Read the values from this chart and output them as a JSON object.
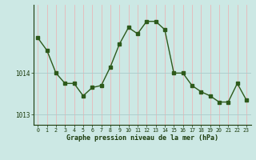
{
  "x": [
    0,
    1,
    2,
    3,
    4,
    5,
    6,
    7,
    8,
    9,
    10,
    11,
    12,
    13,
    14,
    15,
    16,
    17,
    18,
    19,
    20,
    21,
    22,
    23
  ],
  "y": [
    1014.85,
    1014.55,
    1014.0,
    1013.75,
    1013.75,
    1013.45,
    1013.65,
    1013.7,
    1014.15,
    1014.7,
    1015.1,
    1014.95,
    1015.25,
    1015.25,
    1015.05,
    1014.0,
    1014.0,
    1013.7,
    1013.55,
    1013.45,
    1013.3,
    1013.3,
    1013.75,
    1013.35
  ],
  "ylim": [
    1012.75,
    1015.65
  ],
  "yticks": [
    1013,
    1014
  ],
  "xticks": [
    0,
    1,
    2,
    3,
    4,
    5,
    6,
    7,
    8,
    9,
    10,
    11,
    12,
    13,
    14,
    15,
    16,
    17,
    18,
    19,
    20,
    21,
    22,
    23
  ],
  "line_color": "#2d5a1b",
  "marker_color": "#2d5a1b",
  "bg_color": "#cce8e4",
  "vgrid_color": "#e8b8b8",
  "hgrid_color": "#aacccc",
  "xlabel": "Graphe pression niveau de la mer (hPa)",
  "xlabel_color": "#1a3a0a",
  "tick_color": "#1a3a0a",
  "axis_color": "#1a3a0a"
}
